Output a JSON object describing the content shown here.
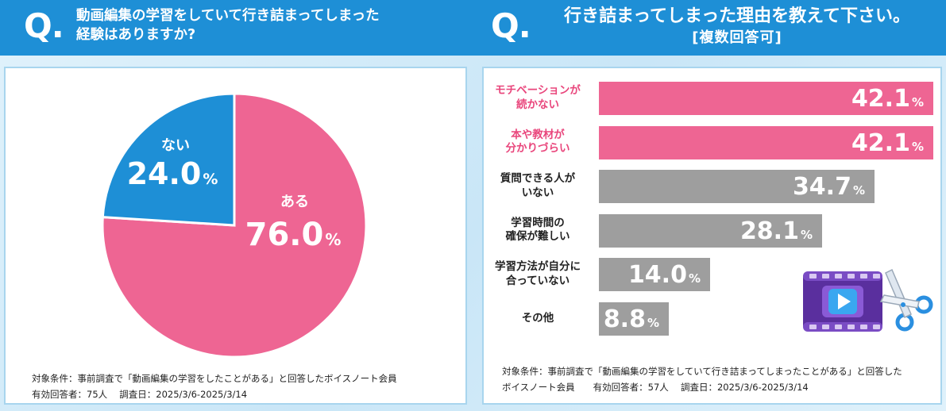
{
  "left": {
    "q_mark": "Q.",
    "title_line1": "動画編集の学習をしていて行き詰まってしまった",
    "title_line2": "経験はありますか?",
    "note_line1": "対象条件：事前調査で「動画編集の学習をしたことがある」と回答したボイスノート会員",
    "note_line2": "有効回答者：75人　 調査日：2025/3/6-2025/3/14"
  },
  "right": {
    "q_mark": "Q.",
    "title_line1": "行き詰まってしまった理由を教えて下さい。",
    "title_line2": "[複数回答可]",
    "note_line1": "対象条件：事前調査で「動画編集の学習をしていて行き詰まってしまったことがある」と回答した",
    "note_line2": "ボイスノート会員　　有効回答者：57人　 調査日：2025/3/6-2025/3/14"
  },
  "colors": {
    "pink": "#ee6593",
    "blue": "#1e8fd6",
    "gray": "#9e9e9e",
    "pink_text": "#e9467c"
  },
  "chart_data": [
    {
      "type": "pie",
      "slices": [
        {
          "label": "ある",
          "value": 76.0,
          "display": "76.0",
          "unit": "%",
          "color": "#ee6593"
        },
        {
          "label": "ない",
          "value": 24.0,
          "display": "24.0",
          "unit": "%",
          "color": "#1e8fd6"
        }
      ]
    },
    {
      "type": "bar",
      "orientation": "horizontal",
      "categories": [
        [
          "モチベーションが",
          "続かない"
        ],
        [
          "本や教材が",
          "分かりづらい"
        ],
        [
          "質問できる人が",
          "いない"
        ],
        [
          "学習時間の",
          "確保が難しい"
        ],
        [
          "学習方法が自分に",
          "合っていない"
        ],
        [
          "その他"
        ]
      ],
      "values": [
        42.1,
        42.1,
        34.7,
        28.1,
        14.0,
        8.8
      ],
      "display": [
        "42.1",
        "42.1",
        "34.7",
        "28.1",
        "14.0",
        "8.8"
      ],
      "unit": "%",
      "highlight": [
        true,
        true,
        false,
        false,
        false,
        false
      ]
    }
  ],
  "icon": "video-edit-scissors-icon"
}
